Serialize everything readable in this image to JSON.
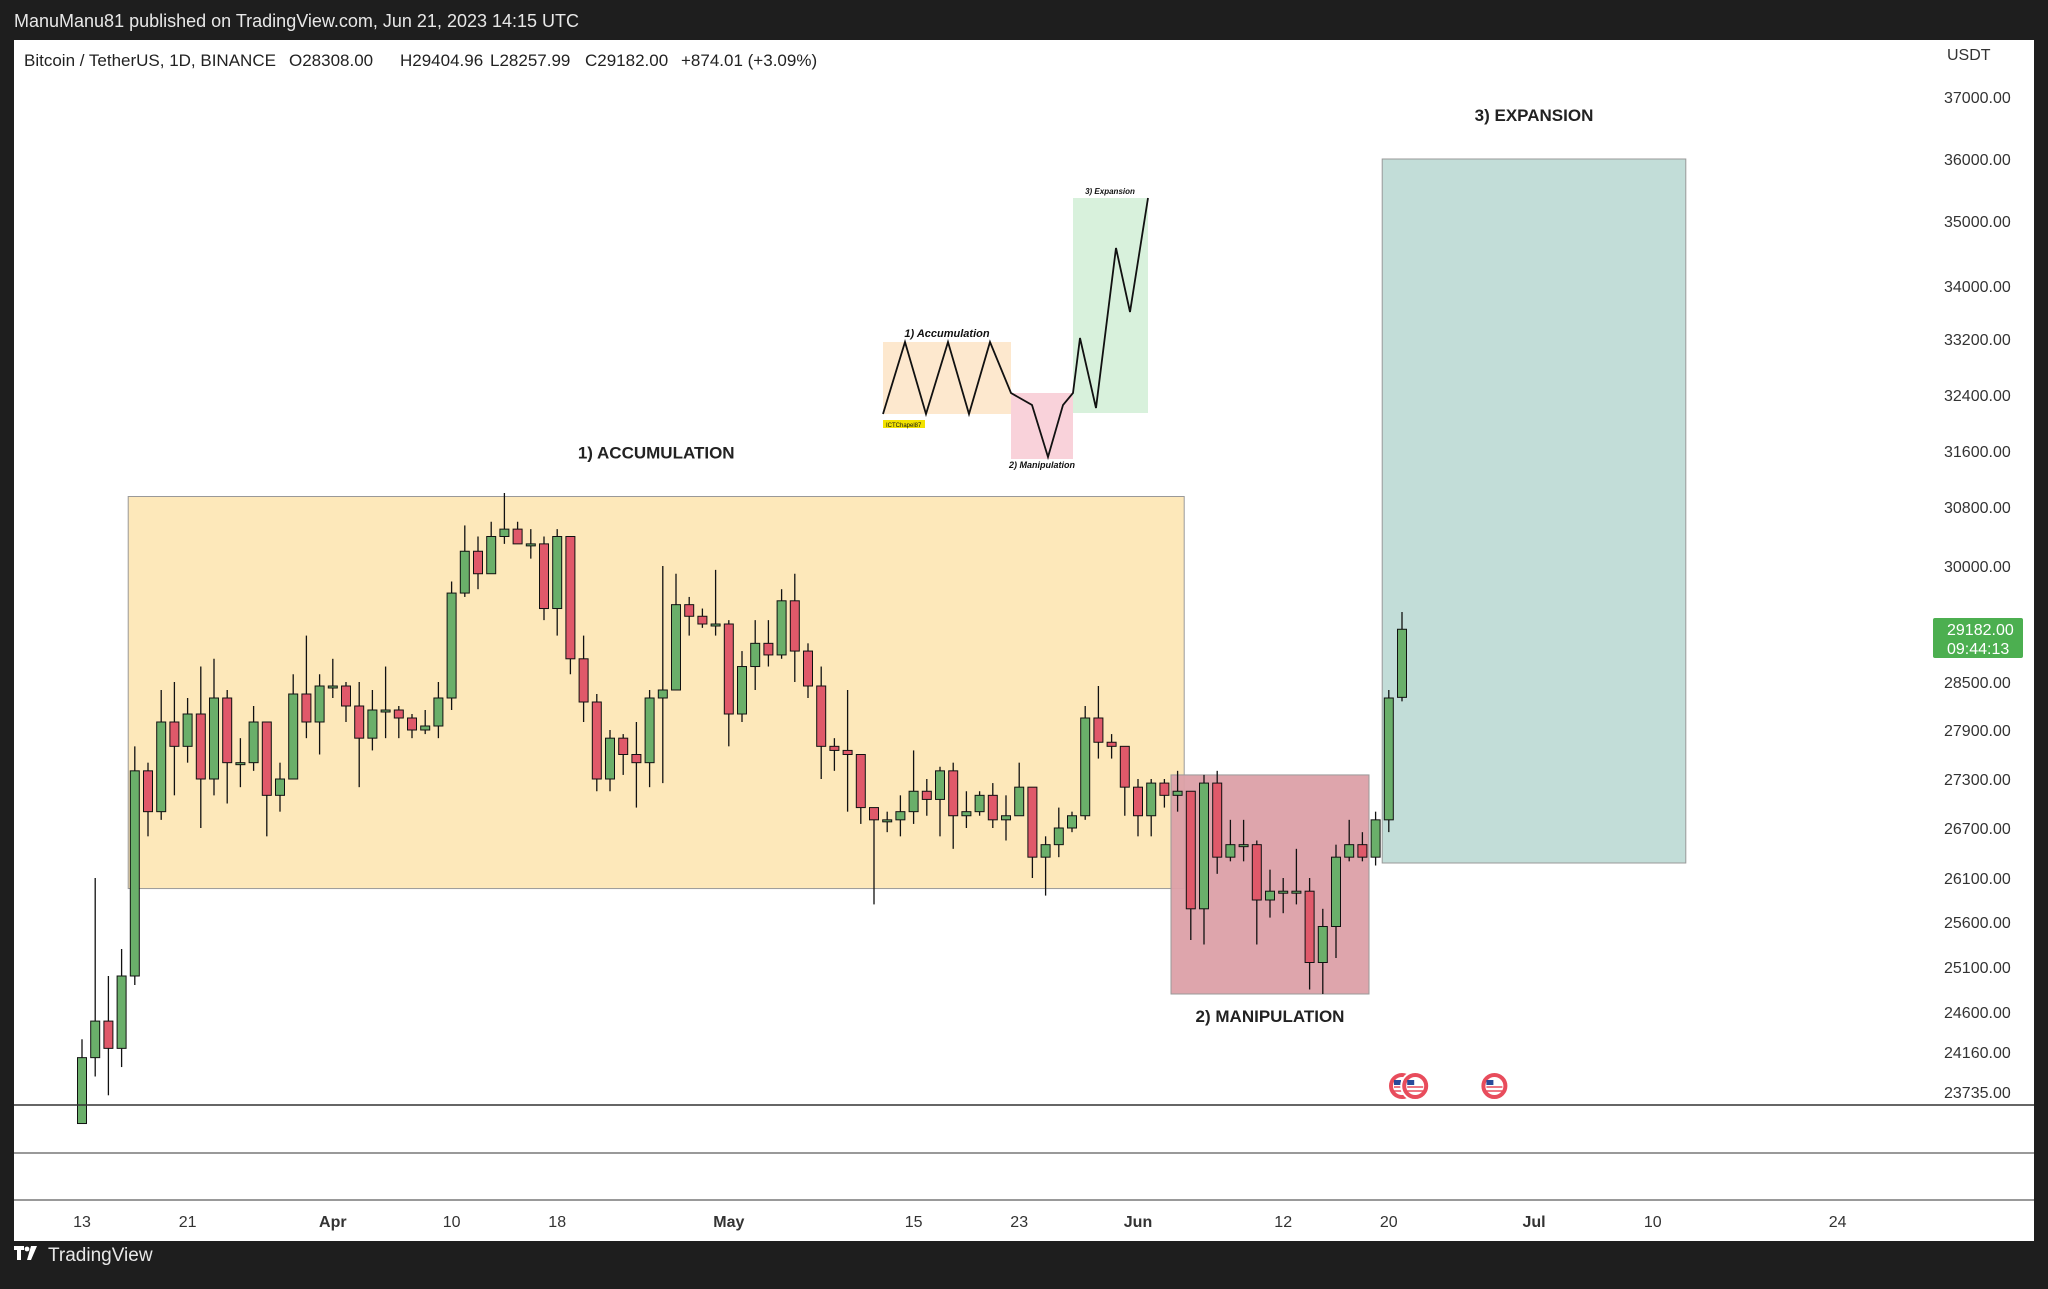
{
  "header": {
    "published": "ManuManu81 published on TradingView.com, Jun 21, 2023 14:15 UTC"
  },
  "symbol": {
    "name": "Bitcoin / TetherUS, 1D, BINANCE",
    "open": "O28308.00",
    "high": "H29404.96",
    "low": "L28257.99",
    "close": "C29182.00",
    "change": "+874.01 (+3.09%)"
  },
  "price_badge": {
    "price": "29182.00",
    "countdown": "09:44:13",
    "color": "#4caf50"
  },
  "footer": {
    "brand": "TradingView",
    "logo": "tradingview-logo-icon"
  },
  "colors": {
    "up": "#6aaf6a",
    "down": "#e0596a",
    "accumulation_zone": "#fde7b6",
    "manipulation_zone": "#dca0a8",
    "expansion_zone": "#bfdbd6"
  },
  "chart_data": {
    "type": "candlestick",
    "currency_label": "USDT",
    "y_ticks": [
      37000,
      36000,
      35000,
      34000,
      33200,
      32400,
      31600,
      30800,
      30000,
      28500,
      27900,
      27300,
      26700,
      26100,
      25600,
      25100,
      24600,
      24160,
      23735
    ],
    "y_tick_labels": [
      "37000.00",
      "36000.00",
      "35000.00",
      "34000.00",
      "33200.00",
      "32400.00",
      "31600.00",
      "30800.00",
      "30000.00",
      "28500.00",
      "27900.00",
      "27300.00",
      "26700.00",
      "26100.00",
      "25600.00",
      "25100.00",
      "24600.00",
      "24160.00",
      "23735.00"
    ],
    "x_labels": [
      "13",
      "21",
      "Apr",
      "10",
      "18",
      "May",
      "15",
      "23",
      "Jun",
      "12",
      "20",
      "Jul",
      "10",
      "24"
    ],
    "x_label_dates": [
      "2023-03-13",
      "2023-03-21",
      "2023-04-01",
      "2023-04-10",
      "2023-04-18",
      "2023-05-01",
      "2023-05-15",
      "2023-05-23",
      "2023-06-01",
      "2023-06-12",
      "2023-06-20",
      "2023-07-01",
      "2023-07-10",
      "2023-07-24"
    ],
    "candles": [
      {
        "d": "2023-03-13",
        "o": 23400,
        "h": 24300,
        "l": 23400,
        "c": 24100
      },
      {
        "d": "2023-03-14",
        "o": 24100,
        "h": 26100,
        "l": 23900,
        "c": 24500
      },
      {
        "d": "2023-03-15",
        "o": 24500,
        "h": 25000,
        "l": 23700,
        "c": 24200
      },
      {
        "d": "2023-03-16",
        "o": 24200,
        "h": 25300,
        "l": 24000,
        "c": 25000
      },
      {
        "d": "2023-03-17",
        "o": 25000,
        "h": 27700,
        "l": 24900,
        "c": 27400
      },
      {
        "d": "2023-03-18",
        "o": 27400,
        "h": 27500,
        "l": 26600,
        "c": 26900
      },
      {
        "d": "2023-03-19",
        "o": 26900,
        "h": 28400,
        "l": 26800,
        "c": 28000
      },
      {
        "d": "2023-03-20",
        "o": 28000,
        "h": 28500,
        "l": 27100,
        "c": 27700
      },
      {
        "d": "2023-03-21",
        "o": 27700,
        "h": 28300,
        "l": 27500,
        "c": 28100
      },
      {
        "d": "2023-03-22",
        "o": 28100,
        "h": 28700,
        "l": 26700,
        "c": 27300
      },
      {
        "d": "2023-03-23",
        "o": 27300,
        "h": 28800,
        "l": 27100,
        "c": 28300
      },
      {
        "d": "2023-03-24",
        "o": 28300,
        "h": 28400,
        "l": 27000,
        "c": 27500
      },
      {
        "d": "2023-03-25",
        "o": 27500,
        "h": 27800,
        "l": 27200,
        "c": 27500
      },
      {
        "d": "2023-03-26",
        "o": 27500,
        "h": 28200,
        "l": 27400,
        "c": 28000
      },
      {
        "d": "2023-03-27",
        "o": 28000,
        "h": 28000,
        "l": 26600,
        "c": 27100
      },
      {
        "d": "2023-03-28",
        "o": 27100,
        "h": 27500,
        "l": 26900,
        "c": 27300
      },
      {
        "d": "2023-03-29",
        "o": 27300,
        "h": 28600,
        "l": 27300,
        "c": 28350
      },
      {
        "d": "2023-03-30",
        "o": 28350,
        "h": 29100,
        "l": 27800,
        "c": 28000
      },
      {
        "d": "2023-03-31",
        "o": 28000,
        "h": 28600,
        "l": 27600,
        "c": 28450
      },
      {
        "d": "2023-04-01",
        "o": 28450,
        "h": 28800,
        "l": 28300,
        "c": 28450
      },
      {
        "d": "2023-04-02",
        "o": 28450,
        "h": 28500,
        "l": 28000,
        "c": 28200
      },
      {
        "d": "2023-04-03",
        "o": 28200,
        "h": 28500,
        "l": 27200,
        "c": 27800
      },
      {
        "d": "2023-04-04",
        "o": 27800,
        "h": 28400,
        "l": 27650,
        "c": 28150
      },
      {
        "d": "2023-04-05",
        "o": 28150,
        "h": 28700,
        "l": 27800,
        "c": 28150
      },
      {
        "d": "2023-04-06",
        "o": 28150,
        "h": 28200,
        "l": 27800,
        "c": 28050
      },
      {
        "d": "2023-04-07",
        "o": 28050,
        "h": 28100,
        "l": 27800,
        "c": 27900
      },
      {
        "d": "2023-04-08",
        "o": 27900,
        "h": 28150,
        "l": 27850,
        "c": 27950
      },
      {
        "d": "2023-04-09",
        "o": 27950,
        "h": 28500,
        "l": 27800,
        "c": 28300
      },
      {
        "d": "2023-04-10",
        "o": 28300,
        "h": 29800,
        "l": 28150,
        "c": 29650
      },
      {
        "d": "2023-04-11",
        "o": 29650,
        "h": 30550,
        "l": 29600,
        "c": 30200
      },
      {
        "d": "2023-04-12",
        "o": 30200,
        "h": 30400,
        "l": 29700,
        "c": 29900
      },
      {
        "d": "2023-04-13",
        "o": 29900,
        "h": 30600,
        "l": 29900,
        "c": 30400
      },
      {
        "d": "2023-04-14",
        "o": 30400,
        "h": 31000,
        "l": 30300,
        "c": 30500
      },
      {
        "d": "2023-04-15",
        "o": 30500,
        "h": 30600,
        "l": 30300,
        "c": 30300
      },
      {
        "d": "2023-04-16",
        "o": 30300,
        "h": 30500,
        "l": 30100,
        "c": 30300
      },
      {
        "d": "2023-04-17",
        "o": 30300,
        "h": 30400,
        "l": 29300,
        "c": 29450
      },
      {
        "d": "2023-04-18",
        "o": 29450,
        "h": 30500,
        "l": 29100,
        "c": 30400
      },
      {
        "d": "2023-04-19",
        "o": 30400,
        "h": 30400,
        "l": 28600,
        "c": 28800
      },
      {
        "d": "2023-04-20",
        "o": 28800,
        "h": 29100,
        "l": 28000,
        "c": 28250
      },
      {
        "d": "2023-04-21",
        "o": 28250,
        "h": 28350,
        "l": 27150,
        "c": 27300
      },
      {
        "d": "2023-04-22",
        "o": 27300,
        "h": 27900,
        "l": 27150,
        "c": 27800
      },
      {
        "d": "2023-04-23",
        "o": 27800,
        "h": 27850,
        "l": 27350,
        "c": 27600
      },
      {
        "d": "2023-04-24",
        "o": 27600,
        "h": 28000,
        "l": 26950,
        "c": 27500
      },
      {
        "d": "2023-04-25",
        "o": 27500,
        "h": 28400,
        "l": 27200,
        "c": 28300
      },
      {
        "d": "2023-04-26",
        "o": 28300,
        "h": 30000,
        "l": 27250,
        "c": 28400
      },
      {
        "d": "2023-04-27",
        "o": 28400,
        "h": 29900,
        "l": 28400,
        "c": 29500
      },
      {
        "d": "2023-04-28",
        "o": 29500,
        "h": 29600,
        "l": 29100,
        "c": 29350
      },
      {
        "d": "2023-04-29",
        "o": 29350,
        "h": 29450,
        "l": 29200,
        "c": 29250
      },
      {
        "d": "2023-04-30",
        "o": 29250,
        "h": 29950,
        "l": 29100,
        "c": 29250
      },
      {
        "d": "2023-05-01",
        "o": 29250,
        "h": 29300,
        "l": 27700,
        "c": 28100
      },
      {
        "d": "2023-05-02",
        "o": 28100,
        "h": 28900,
        "l": 28000,
        "c": 28700
      },
      {
        "d": "2023-05-03",
        "o": 28700,
        "h": 29300,
        "l": 28400,
        "c": 29000
      },
      {
        "d": "2023-05-04",
        "o": 29000,
        "h": 29300,
        "l": 28700,
        "c": 28850
      },
      {
        "d": "2023-05-05",
        "o": 28850,
        "h": 29700,
        "l": 28800,
        "c": 29550
      },
      {
        "d": "2023-05-06",
        "o": 29550,
        "h": 29900,
        "l": 28500,
        "c": 28900
      },
      {
        "d": "2023-05-07",
        "o": 28900,
        "h": 29000,
        "l": 28300,
        "c": 28450
      },
      {
        "d": "2023-05-08",
        "o": 28450,
        "h": 28700,
        "l": 27300,
        "c": 27700
      },
      {
        "d": "2023-05-09",
        "o": 27700,
        "h": 27800,
        "l": 27400,
        "c": 27650
      },
      {
        "d": "2023-05-10",
        "o": 27650,
        "h": 28400,
        "l": 26900,
        "c": 27600
      },
      {
        "d": "2023-05-11",
        "o": 27600,
        "h": 27600,
        "l": 26750,
        "c": 26950
      },
      {
        "d": "2023-05-12",
        "o": 26950,
        "h": 26950,
        "l": 25800,
        "c": 26800
      },
      {
        "d": "2023-05-13",
        "o": 26800,
        "h": 26900,
        "l": 26650,
        "c": 26800
      },
      {
        "d": "2023-05-14",
        "o": 26800,
        "h": 27100,
        "l": 26600,
        "c": 26900
      },
      {
        "d": "2023-05-15",
        "o": 26900,
        "h": 27650,
        "l": 26750,
        "c": 27150
      },
      {
        "d": "2023-05-16",
        "o": 27150,
        "h": 27300,
        "l": 26850,
        "c": 27050
      },
      {
        "d": "2023-05-17",
        "o": 27050,
        "h": 27450,
        "l": 26600,
        "c": 27400
      },
      {
        "d": "2023-05-18",
        "o": 27400,
        "h": 27500,
        "l": 26450,
        "c": 26850
      },
      {
        "d": "2023-05-19",
        "o": 26850,
        "h": 27150,
        "l": 26700,
        "c": 26900
      },
      {
        "d": "2023-05-20",
        "o": 26900,
        "h": 27150,
        "l": 26850,
        "c": 27100
      },
      {
        "d": "2023-05-21",
        "o": 27100,
        "h": 27250,
        "l": 26700,
        "c": 26800
      },
      {
        "d": "2023-05-22",
        "o": 26800,
        "h": 27100,
        "l": 26550,
        "c": 26850
      },
      {
        "d": "2023-05-23",
        "o": 26850,
        "h": 27500,
        "l": 26850,
        "c": 27200
      },
      {
        "d": "2023-05-24",
        "o": 27200,
        "h": 27200,
        "l": 26100,
        "c": 26350
      },
      {
        "d": "2023-05-25",
        "o": 26350,
        "h": 26600,
        "l": 25900,
        "c": 26500
      },
      {
        "d": "2023-05-26",
        "o": 26500,
        "h": 26950,
        "l": 26350,
        "c": 26700
      },
      {
        "d": "2023-05-27",
        "o": 26700,
        "h": 26900,
        "l": 26650,
        "c": 26850
      },
      {
        "d": "2023-05-28",
        "o": 26850,
        "h": 28200,
        "l": 26800,
        "c": 28050
      },
      {
        "d": "2023-05-29",
        "o": 28050,
        "h": 28450,
        "l": 27550,
        "c": 27750
      },
      {
        "d": "2023-05-30",
        "o": 27750,
        "h": 27850,
        "l": 27550,
        "c": 27700
      },
      {
        "d": "2023-05-31",
        "o": 27700,
        "h": 27700,
        "l": 26850,
        "c": 27200
      },
      {
        "d": "2023-06-01",
        "o": 27200,
        "h": 27300,
        "l": 26600,
        "c": 26850
      },
      {
        "d": "2023-06-02",
        "o": 26850,
        "h": 27300,
        "l": 26600,
        "c": 27250
      },
      {
        "d": "2023-06-03",
        "o": 27250,
        "h": 27300,
        "l": 26950,
        "c": 27100
      },
      {
        "d": "2023-06-04",
        "o": 27100,
        "h": 27400,
        "l": 26900,
        "c": 27150
      },
      {
        "d": "2023-06-05",
        "o": 27150,
        "h": 27150,
        "l": 25400,
        "c": 25750
      },
      {
        "d": "2023-06-06",
        "o": 25750,
        "h": 27350,
        "l": 25350,
        "c": 27250
      },
      {
        "d": "2023-06-07",
        "o": 27250,
        "h": 27400,
        "l": 26150,
        "c": 26350
      },
      {
        "d": "2023-06-08",
        "o": 26350,
        "h": 26800,
        "l": 26300,
        "c": 26500
      },
      {
        "d": "2023-06-09",
        "o": 26500,
        "h": 26800,
        "l": 26300,
        "c": 26500
      },
      {
        "d": "2023-06-10",
        "o": 26500,
        "h": 26550,
        "l": 25350,
        "c": 25850
      },
      {
        "d": "2023-06-11",
        "o": 25850,
        "h": 26200,
        "l": 25650,
        "c": 25950
      },
      {
        "d": "2023-06-12",
        "o": 25950,
        "h": 26100,
        "l": 25700,
        "c": 25950
      },
      {
        "d": "2023-06-13",
        "o": 25950,
        "h": 26450,
        "l": 25800,
        "c": 25950
      },
      {
        "d": "2023-06-14",
        "o": 25950,
        "h": 26100,
        "l": 24850,
        "c": 25150
      },
      {
        "d": "2023-06-15",
        "o": 25150,
        "h": 25750,
        "l": 24800,
        "c": 25550
      },
      {
        "d": "2023-06-16",
        "o": 25550,
        "h": 26500,
        "l": 25200,
        "c": 26350
      },
      {
        "d": "2023-06-17",
        "o": 26350,
        "h": 26800,
        "l": 26300,
        "c": 26500
      },
      {
        "d": "2023-06-18",
        "o": 26500,
        "h": 26650,
        "l": 26300,
        "c": 26350
      },
      {
        "d": "2023-06-19",
        "o": 26350,
        "h": 26900,
        "l": 26250,
        "c": 26800
      },
      {
        "d": "2023-06-20",
        "o": 26800,
        "h": 28400,
        "l": 26650,
        "c": 28300
      },
      {
        "d": "2023-06-21",
        "o": 28308,
        "h": 29404.96,
        "l": 28257.99,
        "c": 29182
      }
    ],
    "zones": [
      {
        "name": "accumulation",
        "label": "1) ACCUMULATION",
        "from": "2023-03-17",
        "to": "2023-06-04",
        "top": 30950,
        "bottom": 25980
      },
      {
        "name": "manipulation",
        "label": "2) MANIPULATION",
        "from": "2023-06-04",
        "to": "2023-06-18",
        "top": 27350,
        "bottom": 24800
      },
      {
        "name": "expansion",
        "label": "3) EXPANSION",
        "from": "2023-06-20",
        "to": "2023-07-12",
        "top": 36000,
        "bottom": 26280
      }
    ],
    "schematic": {
      "accumulation_label": "1) Accumulation",
      "manipulation_label": "2) Manipulation",
      "expansion_label": "3) Expansion",
      "tag": "ICTChapel87"
    },
    "event_markers": [
      {
        "icon": "us-flag-icon",
        "date": "2023-06-21"
      },
      {
        "icon": "us-flag-icon",
        "date": "2023-06-22"
      },
      {
        "icon": "us-flag-icon",
        "date": "2023-06-28"
      }
    ]
  }
}
